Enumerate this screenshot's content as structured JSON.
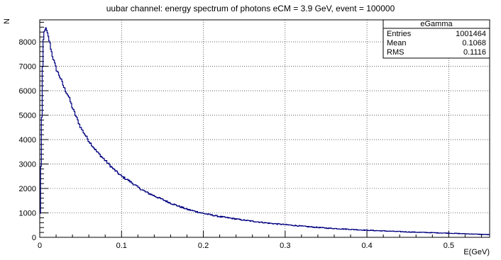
{
  "chart_data": {
    "type": "line",
    "title": "uubar channel: energy spectrum of photons eCM = 3.9 GeV, event = 100000",
    "xlabel": "E(GeV)",
    "ylabel": "N",
    "xlim": [
      0,
      0.55
    ],
    "ylim": [
      0,
      8900
    ],
    "grid": true,
    "x_ticks": [
      "0",
      "0.1",
      "0.2",
      "0.3",
      "0.4",
      "0.5"
    ],
    "y_ticks": [
      "0",
      "1000",
      "2000",
      "3000",
      "4000",
      "5000",
      "6000",
      "7000",
      "8000"
    ],
    "x_tick_values": [
      0,
      0.1,
      0.2,
      0.3,
      0.4,
      0.5
    ],
    "y_tick_values": [
      0,
      1000,
      2000,
      3000,
      4000,
      5000,
      6000,
      7000,
      8000
    ],
    "series": [
      {
        "color": "#000080",
        "x": [
          0,
          0.002,
          0.004,
          0.006,
          0.008,
          0.01,
          0.012,
          0.015,
          0.02,
          0.025,
          0.03,
          0.035,
          0.04,
          0.05,
          0.06,
          0.07,
          0.08,
          0.09,
          0.1,
          0.11,
          0.12,
          0.13,
          0.14,
          0.15,
          0.16,
          0.18,
          0.2,
          0.22,
          0.25,
          0.28,
          0.3,
          0.33,
          0.35,
          0.4,
          0.45,
          0.5,
          0.55
        ],
        "y": [
          0,
          3900,
          7900,
          8550,
          8500,
          8250,
          8000,
          7500,
          6900,
          6550,
          6100,
          5800,
          5300,
          4500,
          3950,
          3500,
          3150,
          2800,
          2500,
          2300,
          2050,
          1850,
          1700,
          1550,
          1400,
          1150,
          980,
          850,
          700,
          580,
          520,
          430,
          380,
          290,
          220,
          170,
          110
        ]
      }
    ]
  },
  "stats_box": {
    "name": "eGamma",
    "rows": [
      {
        "label": "Entries",
        "value": "1001464"
      },
      {
        "label": "Mean",
        "value": "0.1068"
      },
      {
        "label": "RMS",
        "value": "0.1116"
      }
    ]
  }
}
